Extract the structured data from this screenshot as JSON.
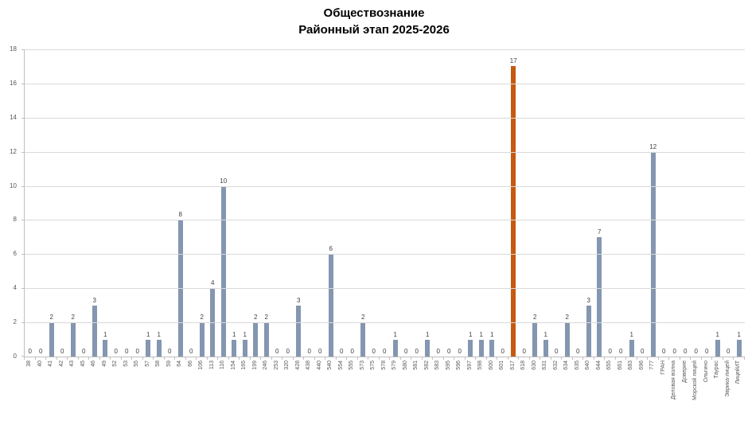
{
  "header": {
    "title_line1": "Обществознание",
    "title_line2": "Районный этап 2025-2026"
  },
  "chart_data": {
    "type": "bar",
    "title": "Обществознание — Районный этап 2025-2026",
    "title_lines": [
      "Обществознание",
      "Районный этап 2025-2026"
    ],
    "xlabel": "",
    "ylabel": "",
    "ylim": [
      0,
      18
    ],
    "ytick_step": 2,
    "grid": true,
    "legend": "none",
    "bar_color": "#8496B0",
    "highlight_color": "#C55A11",
    "highlight_index": 45,
    "categories": [
      "38",
      "40",
      "41",
      "42",
      "43",
      "45",
      "46",
      "49",
      "52",
      "53",
      "55",
      "57",
      "58",
      "59",
      "64",
      "66",
      "106",
      "113",
      "116",
      "154",
      "165",
      "199",
      "246",
      "253",
      "320",
      "428",
      "438",
      "440",
      "540",
      "554",
      "555",
      "573",
      "575",
      "578",
      "579",
      "580",
      "581",
      "582",
      "583",
      "595",
      "596",
      "597",
      "598",
      "600",
      "601",
      "617",
      "618",
      "630",
      "631",
      "632",
      "634",
      "635",
      "640",
      "644",
      "655",
      "661",
      "683",
      "696",
      "777",
      "ГРАН",
      "Деловая волна",
      "Доверие",
      "Морской лицей",
      "Ольгино",
      "Таурас",
      "Эврика-лицей",
      "ЛицейИТ"
    ],
    "values": [
      0,
      0,
      2,
      0,
      2,
      0,
      3,
      1,
      0,
      0,
      0,
      1,
      1,
      0,
      8,
      0,
      2,
      4,
      10,
      1,
      1,
      2,
      2,
      0,
      0,
      3,
      0,
      0,
      6,
      0,
      0,
      2,
      0,
      0,
      1,
      0,
      0,
      1,
      0,
      0,
      0,
      1,
      1,
      1,
      0,
      17,
      0,
      2,
      1,
      0,
      2,
      0,
      3,
      7,
      0,
      0,
      1,
      0,
      12,
      0,
      0,
      0,
      0,
      0,
      1,
      0,
      1
    ],
    "y_axis_labels": [
      "0",
      "2",
      "4",
      "6",
      "8",
      "10",
      "12",
      "14",
      "16",
      "18"
    ]
  }
}
